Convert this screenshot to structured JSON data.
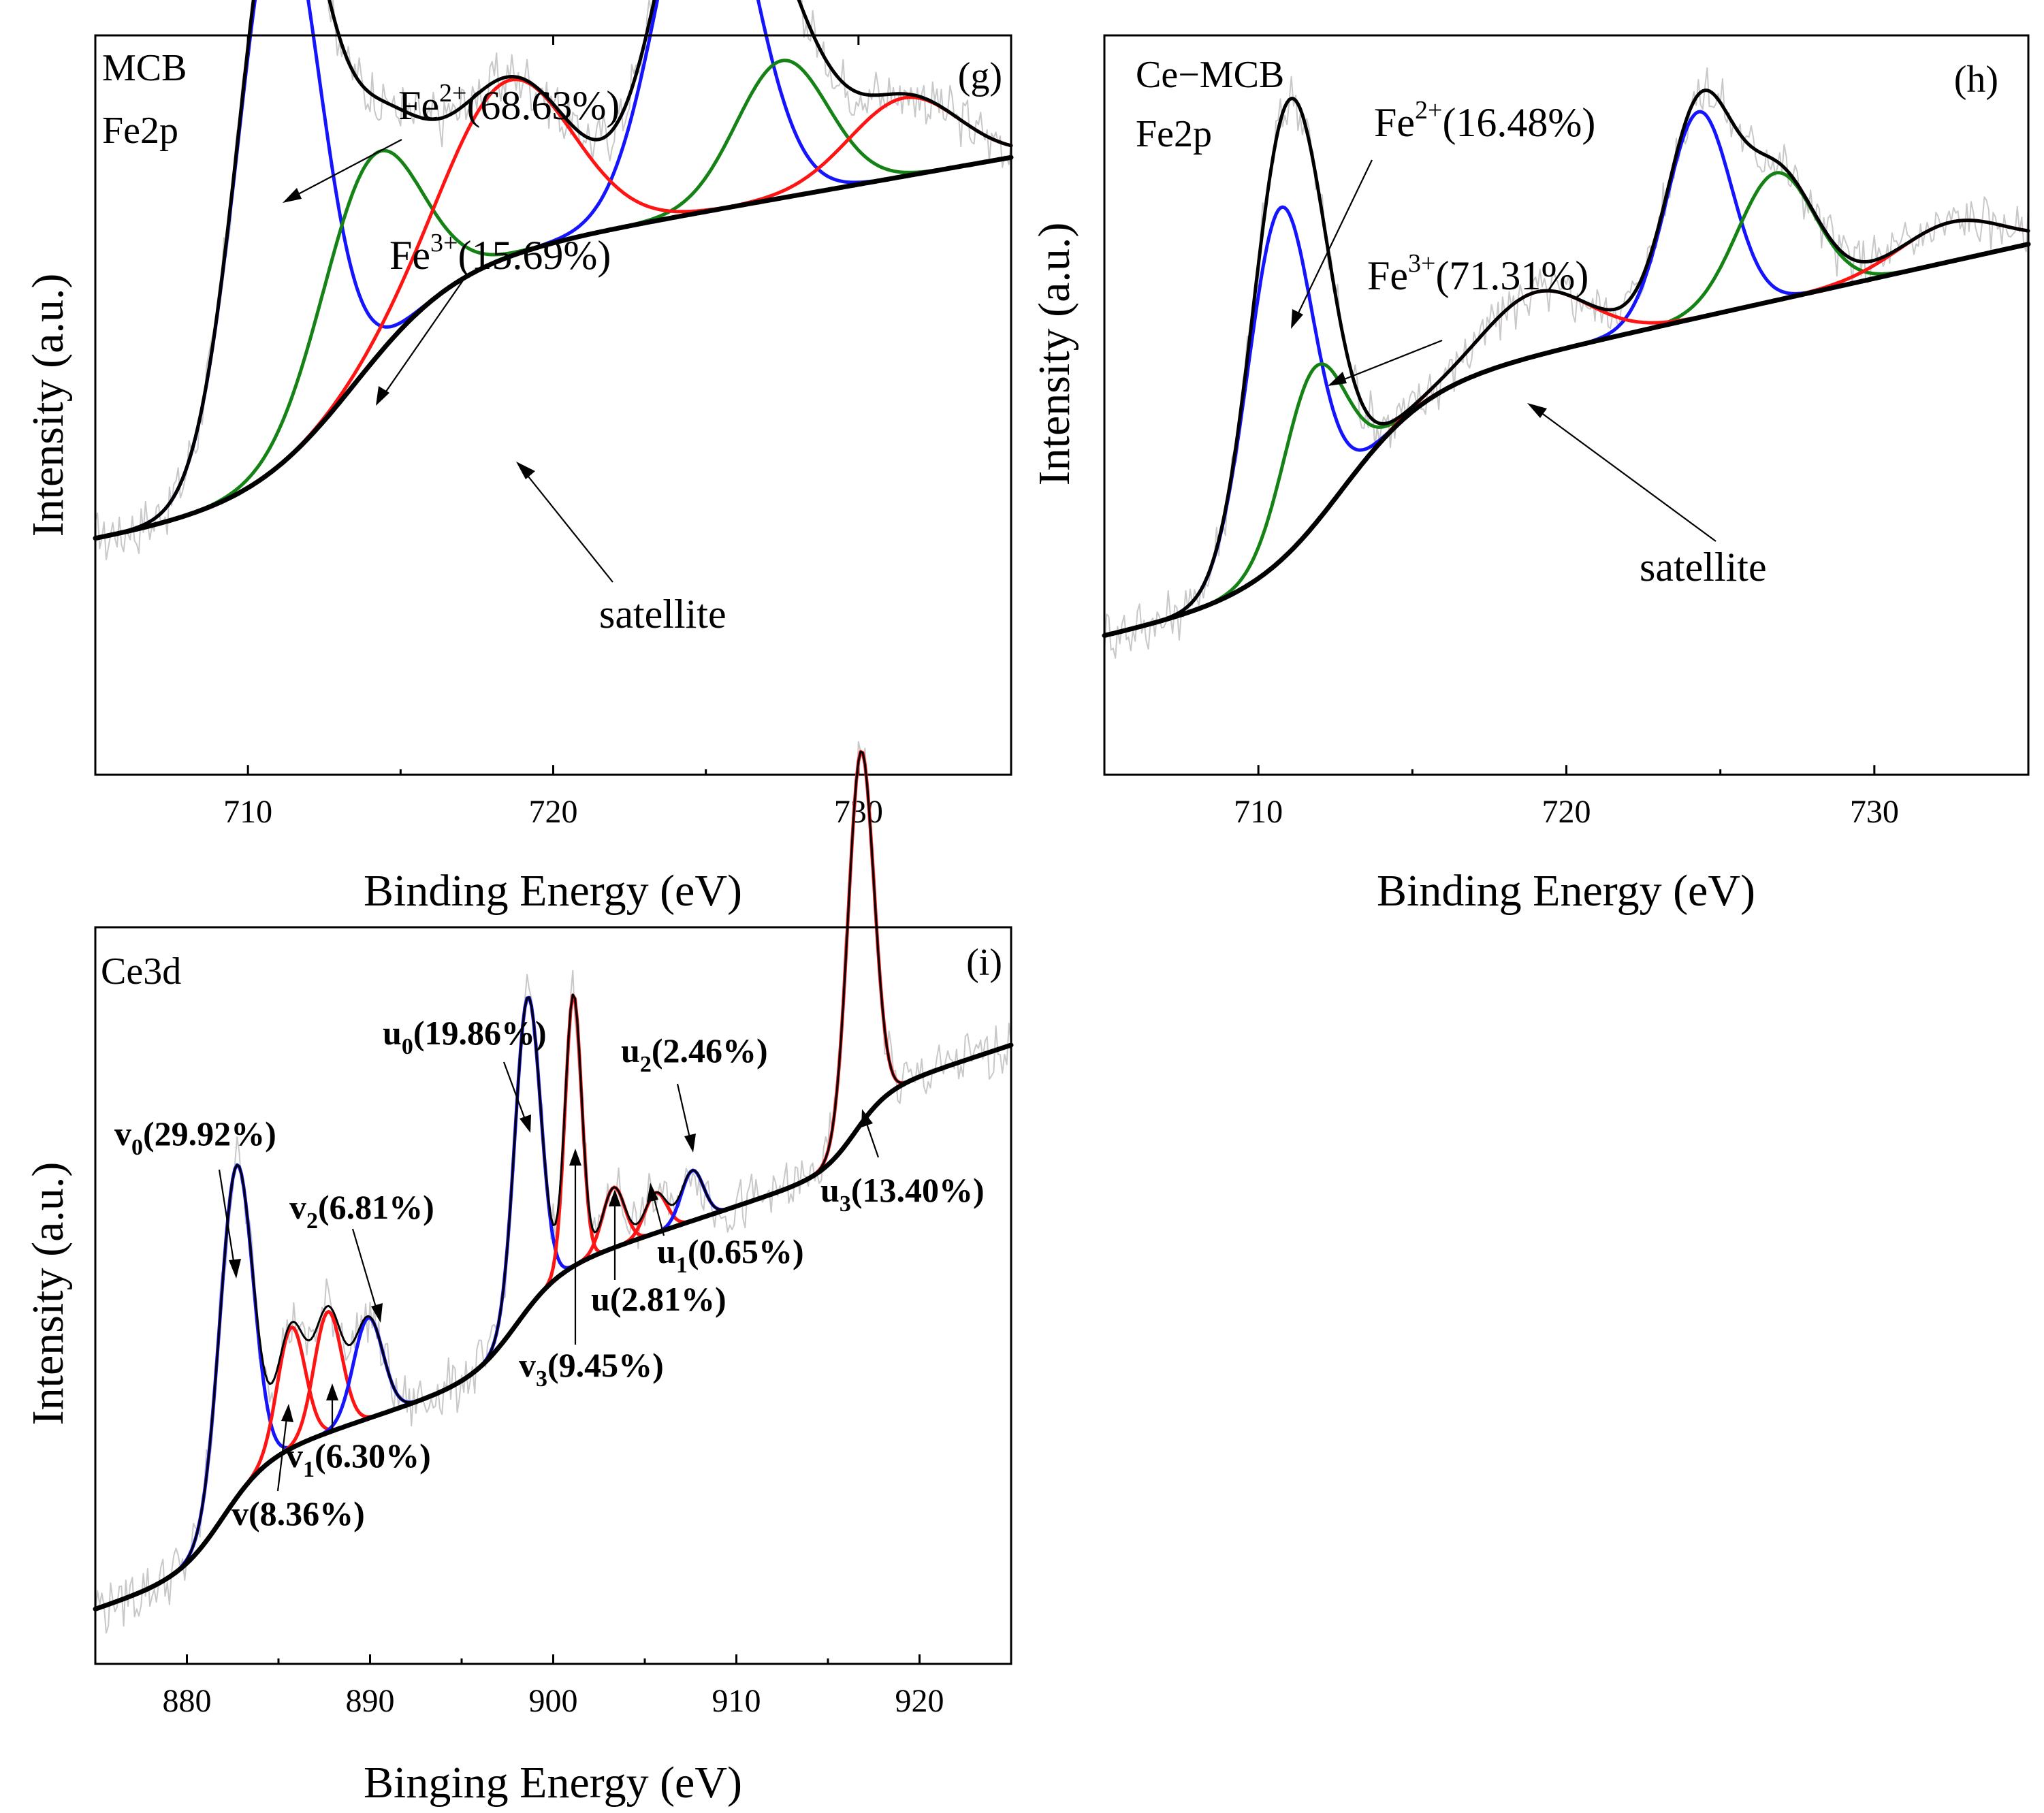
{
  "chart_data": [
    {
      "type": "line",
      "panel": "(g)",
      "sample": "MCB",
      "region": "Fe2p",
      "xlabel": "Binding Energy (eV)",
      "ylabel": "Intensity (a.u.)",
      "xlim": [
        705,
        735
      ],
      "xticks": [
        "710",
        "720",
        "730"
      ],
      "xtick_values": [
        710,
        720,
        730
      ],
      "ylim": [
        0,
        1
      ],
      "colors": {
        "raw": "#c8c8c8",
        "envelope": "#000000",
        "fe2": "#1414ff",
        "fe3": "#148214",
        "sat": "#ff1414",
        "background": "#000000"
      },
      "background": {
        "lo": 0.13,
        "hi": 0.52,
        "center": 713.5,
        "width": 1.7,
        "slope": 0.0055
      },
      "fe2_peaks": [
        {
          "center": 711.0,
          "height": 0.58,
          "sigma": 1.35
        },
        {
          "center": 725.0,
          "height": 0.38,
          "sigma": 1.55
        }
      ],
      "fe3_peaks": [
        {
          "center": 714.0,
          "height": 0.21,
          "sigma": 1.6
        },
        {
          "center": 727.5,
          "height": 0.14,
          "sigma": 1.5
        }
      ],
      "sat_peaks": [
        {
          "center": 718.5,
          "height": 0.18,
          "sigma": 2.1
        },
        {
          "center": 731.5,
          "height": 0.08,
          "sigma": 1.8
        }
      ],
      "annotations": [
        {
          "base": "Fe",
          "sup": "2+",
          "tail": "(68.63%)",
          "color": "#000000"
        },
        {
          "base": "Fe",
          "sup": "3+",
          "tail": "(15.69%)",
          "color": "#000000"
        },
        {
          "text": "satellite",
          "color": "#000000"
        }
      ]
    },
    {
      "type": "line",
      "panel": "(h)",
      "sample": "Ce−MCB",
      "region": "Fe2p",
      "xlabel": "Binding Energy (eV)",
      "ylabel": "Intensity (a.u.)",
      "xlim": [
        705,
        735
      ],
      "xticks": [
        "710",
        "720",
        "730"
      ],
      "xtick_values": [
        710,
        720,
        730
      ],
      "ylim": [
        0,
        1
      ],
      "colors": {
        "raw": "#c8c8c8",
        "envelope": "#000000",
        "fe2": "#1414ff",
        "fe3": "#148214",
        "sat": "#ff1414",
        "background": "#000000"
      },
      "background": {
        "lo": 0.16,
        "hi": 0.56,
        "center": 712.7,
        "width": 1.4,
        "slope": 0.007
      },
      "fe2_peaks": [
        {
          "center": 710.7,
          "height": 0.36,
          "sigma": 1.05
        },
        {
          "center": 724.3,
          "height": 0.21,
          "sigma": 1.05
        }
      ],
      "fe3_peaks": [
        {
          "center": 711.8,
          "height": 0.16,
          "sigma": 1.0
        },
        {
          "center": 726.8,
          "height": 0.13,
          "sigma": 1.25
        }
      ],
      "sat_peaks": [
        {
          "center": 719.0,
          "height": 0.065,
          "sigma": 1.7
        },
        {
          "center": 732.5,
          "height": 0.04,
          "sigma": 1.7
        }
      ],
      "annotations": [
        {
          "base": "Fe",
          "sup": "2+",
          "tail": "(16.48%)",
          "color": "#000000"
        },
        {
          "base": "Fe",
          "sup": "3+",
          "tail": "(71.31%)",
          "color": "#000000"
        },
        {
          "text": "satellite",
          "color": "#000000"
        }
      ]
    },
    {
      "type": "line",
      "panel": "(i)",
      "region": "Ce3d",
      "xlabel": "Binging Energy (eV)",
      "ylabel": "Intensity (a.u.)",
      "xlim": [
        875,
        925
      ],
      "xticks": [
        "880",
        "890",
        "900",
        "910",
        "920"
      ],
      "xtick_values": [
        880,
        890,
        900,
        910,
        920
      ],
      "ylim": [
        0,
        1
      ],
      "colors": {
        "raw": "#c8c8c8",
        "envelope": "#000000",
        "ce4": "#1414ff",
        "ce3": "#ff1414",
        "background": "#000000"
      },
      "background": {
        "lo": 0.19,
        "hi": 0.6,
        "slope": 0.006
      },
      "peaks": [
        {
          "label": "v0",
          "name": "v",
          "sub": "0",
          "pct": "(29.92%)",
          "center": 882.7,
          "height": 0.33,
          "sigma": 0.9,
          "color": "#1414ff"
        },
        {
          "label": "v",
          "name": "v",
          "sub": "",
          "pct": "(8.36%)",
          "center": 885.7,
          "height": 0.12,
          "sigma": 0.75,
          "color": "#ff1414"
        },
        {
          "label": "v1",
          "name": "v",
          "sub": "1",
          "pct": "(6.30%)",
          "center": 887.7,
          "height": 0.12,
          "sigma": 0.75,
          "color": "#ff1414"
        },
        {
          "label": "v2",
          "name": "v",
          "sub": "2",
          "pct": "(6.81%)",
          "center": 889.9,
          "height": 0.1,
          "sigma": 0.8,
          "color": "#1414ff"
        },
        {
          "label": "u0",
          "name": "u",
          "sub": "0",
          "pct": "(19.86%)",
          "center": 898.6,
          "height": 0.31,
          "sigma": 0.7,
          "color": "#1414ff"
        },
        {
          "label": "v3",
          "name": "v",
          "sub": "3",
          "pct": "(9.45%)",
          "center": 901.1,
          "height": 0.27,
          "sigma": 0.45,
          "color": "#ff1414"
        },
        {
          "label": "u",
          "name": "u",
          "sub": "",
          "pct": "(2.81%)",
          "center": 903.3,
          "height": 0.06,
          "sigma": 0.6,
          "color": "#ff1414"
        },
        {
          "label": "u1",
          "name": "u",
          "sub": "1",
          "pct": "(0.65%)",
          "center": 905.6,
          "height": 0.04,
          "sigma": 0.6,
          "color": "#ff1414"
        },
        {
          "label": "u2",
          "name": "u",
          "sub": "2",
          "pct": "(2.46%)",
          "center": 907.6,
          "height": 0.05,
          "sigma": 0.6,
          "color": "#1414ff"
        },
        {
          "label": "u3",
          "name": "u",
          "sub": "3",
          "pct": "(13.40%)",
          "center": 916.8,
          "height": 0.37,
          "sigma": 0.7,
          "color": "#ff1414"
        }
      ]
    }
  ]
}
